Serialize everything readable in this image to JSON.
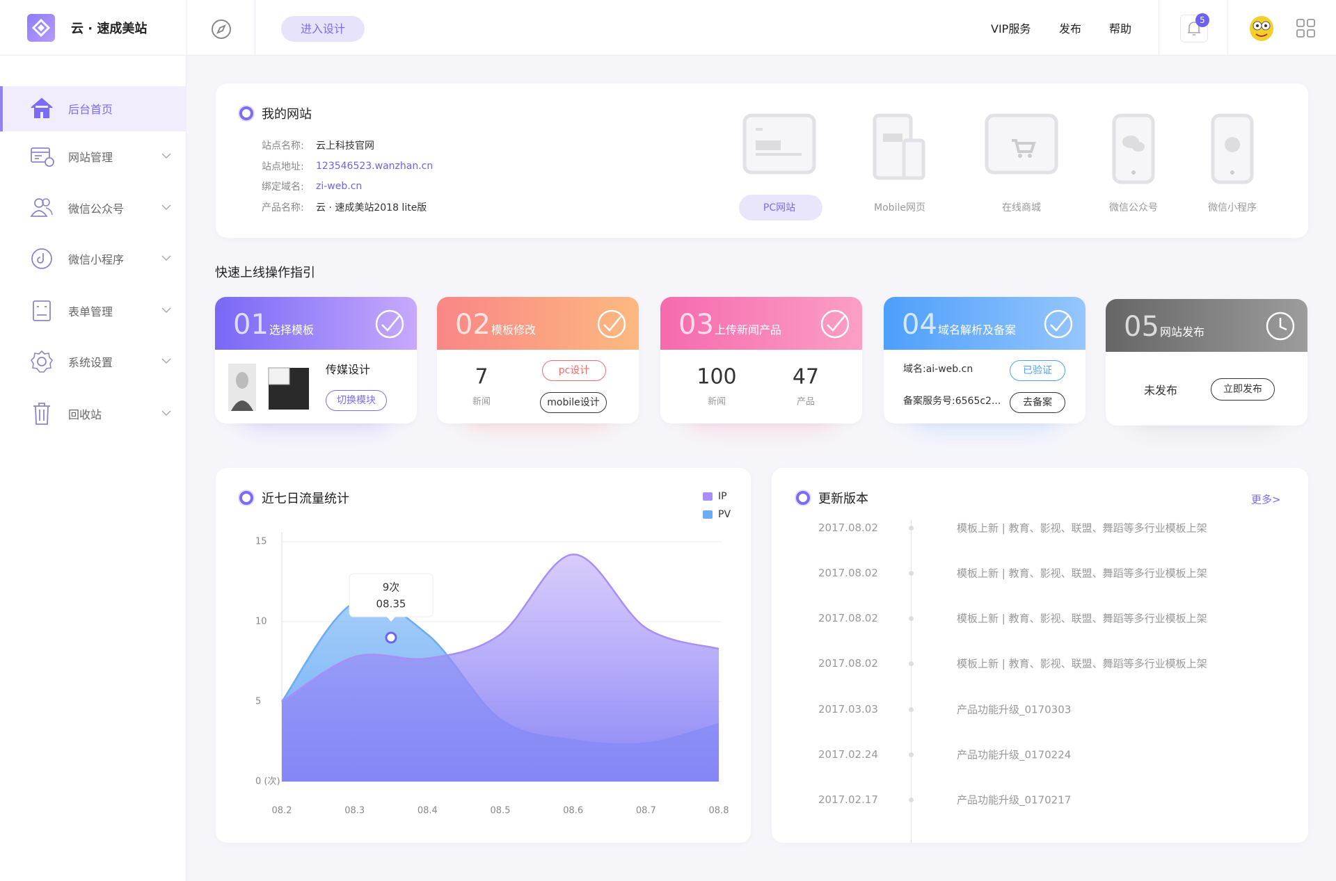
{
  "header": {
    "logo": "云 · 速成美站",
    "enter_design": "进入设计",
    "nav": [
      "VIP服务",
      "发布",
      "帮助"
    ],
    "badge": "5"
  },
  "sidebar": {
    "items": [
      "后台首页",
      "网站管理",
      "微信公众号",
      "微信小程序",
      "表单管理",
      "系统设置",
      "回收站"
    ]
  },
  "my_site": {
    "title": "我的网站",
    "fields": [
      {
        "label": "站点名称:",
        "value": "云上科技官网"
      },
      {
        "label": "站点地址:",
        "value": "123546523.wanzhan.cn"
      },
      {
        "label": "绑定域名:",
        "value": "zi-web.cn"
      },
      {
        "label": "产品名称:",
        "value": "云 · 速成美站2018 lite版"
      }
    ],
    "types": [
      "PC网站",
      "Mobile网页",
      "在线商城",
      "微信公众号",
      "微信小程序"
    ]
  },
  "guide": {
    "title": "快速上线操作指引",
    "steps": [
      {
        "number": "01",
        "title": "选择模板",
        "template_name": "传媒设计",
        "button": "切换模块"
      },
      {
        "number": "02",
        "title": "模板修改",
        "count": 7,
        "count_label": "新闻",
        "buttons": [
          "pc设计",
          "mobile设计"
        ]
      },
      {
        "number": "03",
        "title": "上传新闻产品",
        "stats": [
          {
            "value": 100,
            "label": "新闻"
          },
          {
            "value": 47,
            "label": "产品"
          }
        ]
      },
      {
        "number": "04",
        "title": "域名解析及备案",
        "domain": "域名:ai-web.cn",
        "record": "备案服务号:6565c2...",
        "buttons": [
          "已验证",
          "去备案"
        ]
      },
      {
        "number": "05",
        "title": "网站发布",
        "status": "未发布",
        "button": "立即发布"
      }
    ]
  },
  "chart_data": {
    "type": "area",
    "title": "近七日流量统计",
    "categories": [
      "08.2",
      "08.3",
      "08.4",
      "08.5",
      "08.6",
      "08.7",
      "08.8"
    ],
    "series": [
      {
        "name": "IP",
        "color": "#a88ef6",
        "values": [
          5,
          7.8,
          7.7,
          9.2,
          14.2,
          9.6,
          8.3
        ]
      },
      {
        "name": "PV",
        "color": "#6aacf5",
        "values": [
          5,
          11.2,
          9.2,
          3.9,
          2.6,
          2.4,
          3.6
        ]
      }
    ],
    "ylim": [
      0,
      15
    ],
    "yticks": [
      {
        "value": 0,
        "label": "0 (次)"
      },
      5,
      10,
      15
    ],
    "grid": true,
    "tooltip": {
      "value": 9,
      "label": "9次",
      "x_label": "08.35"
    }
  },
  "versions": {
    "title": "更新版本",
    "more": "更多>",
    "items": [
      {
        "date": "2017.08.02",
        "text": "模板上新 | 教育、影视、联盟、舞蹈等多行业模板上架"
      },
      {
        "date": "2017.08.02",
        "text": "模板上新 | 教育、影视、联盟、舞蹈等多行业模板上架"
      },
      {
        "date": "2017.08.02",
        "text": "模板上新 | 教育、影视、联盟、舞蹈等多行业模板上架"
      },
      {
        "date": "2017.08.02",
        "text": "模板上新 | 教育、影视、联盟、舞蹈等多行业模板上架"
      },
      {
        "date": "2017.03.03",
        "text": "产品功能升级_0170303"
      },
      {
        "date": "2017.02.24",
        "text": "产品功能升级_0170224"
      },
      {
        "date": "2017.02.17",
        "text": "产品功能升级_0170217"
      }
    ]
  }
}
